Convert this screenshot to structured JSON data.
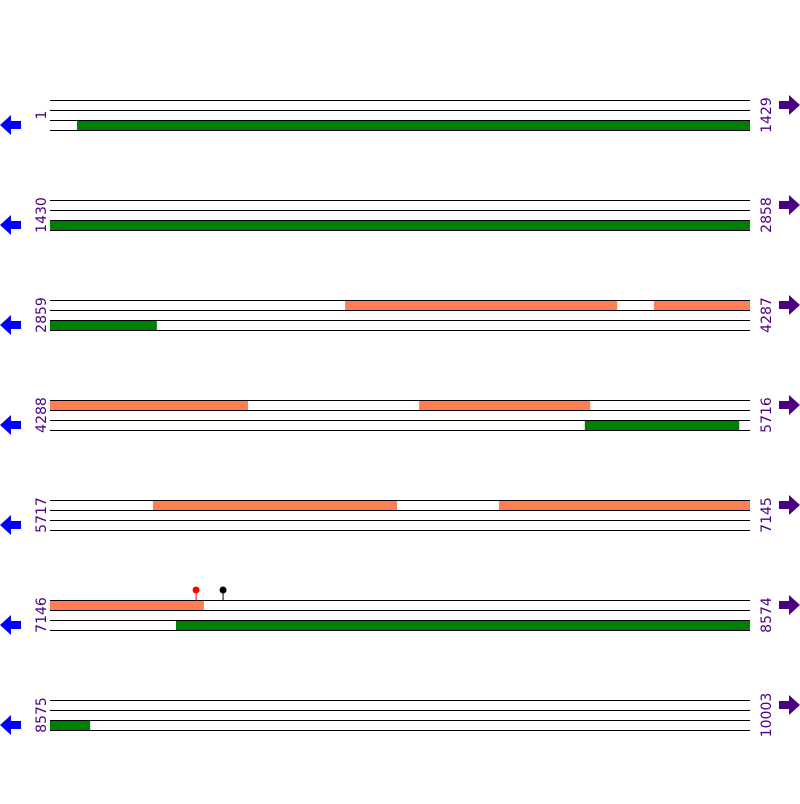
{
  "colors": {
    "line": "#000000",
    "forward_feature": "#ff7f50",
    "reverse_feature": "#008000",
    "left_arrow": "#0000ff",
    "right_arrow": "#4b0082",
    "label": "#4b0082",
    "marker_red": "#ff0000",
    "marker_black": "#000000"
  },
  "icons": {
    "left": "arrow-left-icon",
    "right": "arrow-right-icon"
  },
  "rows": [
    {
      "start": "1",
      "end": "1429",
      "top": [],
      "bottom": [
        [
          56,
          1429
        ]
      ],
      "markers": []
    },
    {
      "start": "1430",
      "end": "2858",
      "top": [],
      "bottom": [
        [
          1430,
          2858
        ]
      ],
      "markers": []
    },
    {
      "start": "2859",
      "end": "4287",
      "top": [
        [
          3461,
          4016
        ],
        [
          4091,
          4287
        ]
      ],
      "bottom": [
        [
          2859,
          3077
        ]
      ],
      "markers": []
    },
    {
      "start": "4288",
      "end": "5716",
      "top": [
        [
          4288,
          4692
        ],
        [
          5041,
          5390
        ]
      ],
      "bottom": [
        [
          5379,
          5694
        ]
      ],
      "markers": []
    },
    {
      "start": "5717",
      "end": "7145",
      "top": [
        [
          5927,
          6425
        ],
        [
          6633,
          7145
        ]
      ],
      "bottom": [],
      "markers": []
    },
    {
      "start": "7146",
      "end": "8574",
      "top": [
        [
          7146,
          7460
        ]
      ],
      "bottom": [
        [
          7403,
          8574
        ]
      ],
      "markers": [
        {
          "pos": 7444,
          "color": "red"
        },
        {
          "pos": 7499,
          "color": "black"
        }
      ]
    },
    {
      "start": "8575",
      "end": "10003",
      "top": [],
      "bottom": [
        [
          8575,
          8657
        ]
      ],
      "markers": []
    }
  ]
}
